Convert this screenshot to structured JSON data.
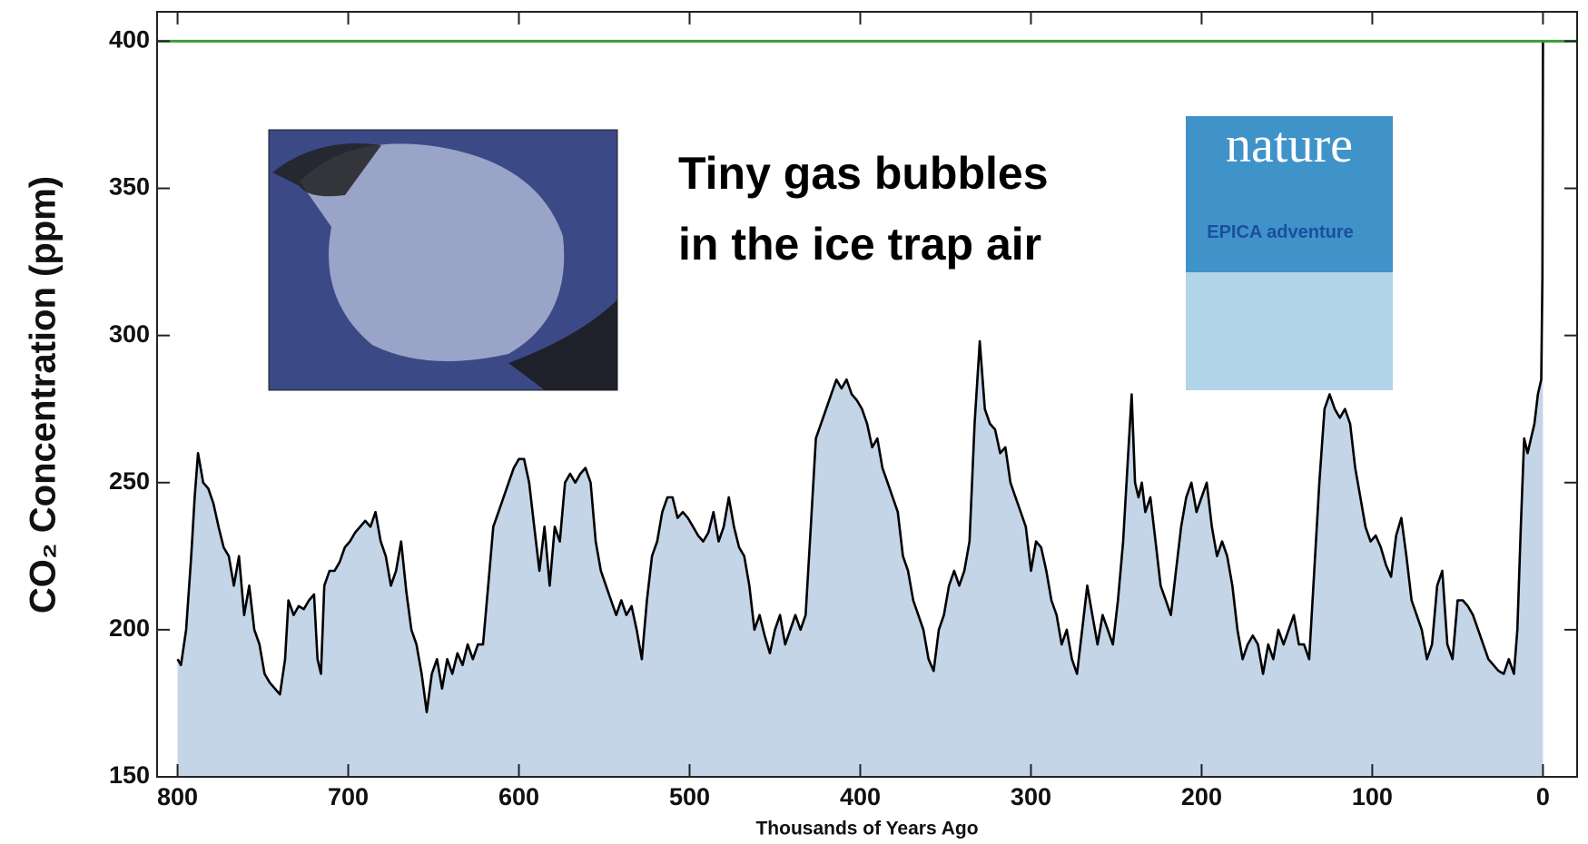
{
  "chart_data": {
    "type": "area",
    "ylabel": "CO₂ Concentration (ppm)",
    "xlabel": "Thousands of Years Ago",
    "annotation": [
      "Tiny gas bubbles",
      "in the ice trap air"
    ],
    "inset_texts": [
      "nature",
      "EPICA adventure"
    ],
    "xlim": [
      812,
      -20
    ],
    "ylim": [
      150,
      410
    ],
    "xticks": [
      800,
      700,
      600,
      500,
      400,
      300,
      200,
      100,
      0
    ],
    "yticks": [
      150,
      200,
      250,
      300,
      350,
      400
    ],
    "reference_line": {
      "value": 400,
      "color": "#3a9a3a"
    },
    "series": [
      {
        "color": "#000000",
        "fill": "#c5d5e8",
        "x": [
          800,
          798,
          795,
          792,
          790,
          788,
          785,
          782,
          779,
          776,
          773,
          770,
          767,
          764,
          761,
          758,
          755,
          752,
          749,
          746,
          743,
          740,
          737,
          735,
          732,
          729,
          726,
          723,
          720,
          718,
          716,
          714,
          711,
          708,
          705,
          702,
          699,
          696,
          693,
          690,
          687,
          684,
          681,
          678,
          675,
          672,
          669,
          666,
          663,
          660,
          657,
          654,
          651,
          648,
          645,
          642,
          639,
          636,
          633,
          630,
          627,
          624,
          621,
          618,
          615,
          612,
          609,
          606,
          603,
          600,
          597,
          594,
          591,
          588,
          585,
          582,
          579,
          576,
          573,
          570,
          567,
          564,
          561,
          558,
          555,
          552,
          549,
          546,
          543,
          540,
          537,
          534,
          531,
          528,
          525,
          522,
          519,
          516,
          513,
          510,
          507,
          504,
          501,
          498,
          495,
          492,
          489,
          486,
          483,
          480,
          477,
          474,
          471,
          468,
          465,
          462,
          459,
          456,
          453,
          450,
          447,
          444,
          441,
          438,
          435,
          432,
          429,
          426,
          423,
          420,
          417,
          414,
          411,
          408,
          405,
          402,
          399,
          396,
          393,
          390,
          387,
          384,
          381,
          378,
          375,
          372,
          369,
          366,
          363,
          360,
          357,
          354,
          351,
          348,
          345,
          342,
          339,
          336,
          333,
          330,
          327,
          324,
          321,
          318,
          315,
          312,
          309,
          306,
          303,
          300,
          297,
          294,
          291,
          288,
          285,
          282,
          279,
          276,
          273,
          270,
          267,
          264,
          261,
          258,
          255,
          252,
          249,
          246,
          243,
          241,
          239,
          237,
          235,
          233,
          230,
          227,
          224,
          221,
          218,
          215,
          212,
          209,
          206,
          203,
          200,
          197,
          194,
          191,
          188,
          185,
          182,
          179,
          176,
          173,
          170,
          167,
          164,
          161,
          158,
          155,
          152,
          149,
          146,
          143,
          140,
          137,
          134,
          131,
          128,
          125,
          122,
          119,
          116,
          113,
          110,
          107,
          104,
          101,
          98,
          95,
          92,
          89,
          86,
          83,
          80,
          77,
          74,
          71,
          68,
          65,
          62,
          59,
          56,
          53,
          50,
          47,
          44,
          41,
          38,
          35,
          32,
          29,
          26,
          23,
          20,
          17,
          15,
          13,
          11,
          9,
          7,
          5,
          3,
          1,
          0.3,
          0
        ],
        "values": [
          190,
          188,
          200,
          225,
          245,
          260,
          250,
          248,
          243,
          235,
          228,
          225,
          215,
          225,
          205,
          215,
          200,
          195,
          185,
          182,
          180,
          178,
          190,
          210,
          205,
          208,
          207,
          210,
          212,
          190,
          185,
          215,
          220,
          220,
          223,
          228,
          230,
          233,
          235,
          237,
          235,
          240,
          230,
          225,
          215,
          220,
          230,
          213,
          200,
          195,
          185,
          172,
          185,
          190,
          180,
          190,
          185,
          192,
          188,
          195,
          190,
          195,
          195,
          215,
          235,
          240,
          245,
          250,
          255,
          258,
          258,
          250,
          235,
          220,
          235,
          215,
          235,
          230,
          250,
          253,
          250,
          253,
          255,
          250,
          230,
          220,
          215,
          210,
          205,
          210,
          205,
          208,
          200,
          190,
          210,
          225,
          230,
          240,
          245,
          245,
          238,
          240,
          238,
          235,
          232,
          230,
          233,
          240,
          230,
          235,
          245,
          235,
          228,
          225,
          215,
          200,
          205,
          198,
          192,
          200,
          205,
          195,
          200,
          205,
          200,
          205,
          235,
          265,
          270,
          275,
          280,
          285,
          282,
          285,
          280,
          278,
          275,
          270,
          262,
          265,
          255,
          250,
          245,
          240,
          225,
          220,
          210,
          205,
          200,
          190,
          186,
          200,
          205,
          215,
          220,
          215,
          220,
          230,
          270,
          298,
          275,
          270,
          268,
          260,
          262,
          250,
          245,
          240,
          235,
          220,
          230,
          228,
          220,
          210,
          205,
          195,
          200,
          190,
          185,
          200,
          215,
          205,
          195,
          205,
          200,
          195,
          210,
          230,
          260,
          280,
          250,
          245,
          250,
          240,
          245,
          230,
          215,
          210,
          205,
          220,
          235,
          245,
          250,
          240,
          245,
          250,
          235,
          225,
          230,
          225,
          215,
          200,
          190,
          195,
          198,
          195,
          185,
          195,
          190,
          200,
          195,
          200,
          205,
          195,
          195,
          190,
          220,
          250,
          275,
          280,
          275,
          272,
          275,
          270,
          255,
          245,
          235,
          230,
          232,
          228,
          222,
          218,
          232,
          238,
          225,
          210,
          205,
          200,
          190,
          195,
          215,
          220,
          195,
          190,
          210,
          210,
          208,
          205,
          200,
          195,
          190,
          188,
          186,
          185,
          190,
          185,
          200,
          235,
          265,
          260,
          265,
          270,
          280,
          285,
          320,
          400
        ]
      }
    ]
  }
}
